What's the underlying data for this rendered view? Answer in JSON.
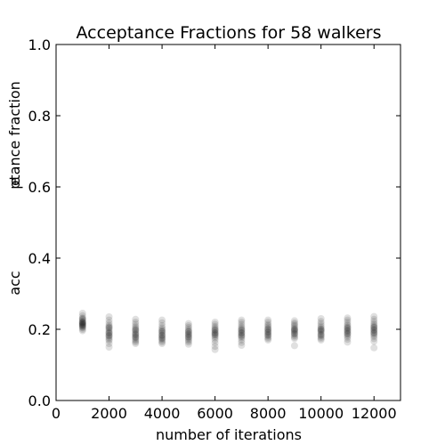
{
  "chart_data": {
    "type": "scatter",
    "title": "Acceptance Fractions for 58 walkers",
    "xlabel": "number of iterations",
    "ylabel_overlap": "ptance fraction",
    "ylabel_under": "e",
    "ylabel_start": "acc",
    "xlim": [
      0,
      13000
    ],
    "ylim": [
      0.0,
      1.0
    ],
    "x_ticks": [
      0,
      2000,
      4000,
      6000,
      8000,
      10000,
      12000
    ],
    "x_tick_labels": [
      "0",
      "2000",
      "4000",
      "6000",
      "8000",
      "10000",
      "12000"
    ],
    "y_ticks": [
      0.0,
      0.2,
      0.4,
      0.6,
      0.8,
      1.0
    ],
    "y_tick_labels": [
      "0.0",
      "0.2",
      "0.4",
      "0.6",
      "0.8",
      "1.0"
    ],
    "grid": false,
    "legend": "none",
    "marker_color": "#000000",
    "marker_alpha": 0.12,
    "series": [
      {
        "x": 1000,
        "values": [
          0.245,
          0.238,
          0.232,
          0.228,
          0.225,
          0.222,
          0.22,
          0.218,
          0.216,
          0.214,
          0.212,
          0.21,
          0.208,
          0.206,
          0.204,
          0.2,
          0.196,
          0.23,
          0.219,
          0.213
        ]
      },
      {
        "x": 2000,
        "values": [
          0.235,
          0.226,
          0.218,
          0.212,
          0.208,
          0.204,
          0.2,
          0.196,
          0.192,
          0.188,
          0.184,
          0.18,
          0.176,
          0.172,
          0.168,
          0.16,
          0.15,
          0.205,
          0.19,
          0.182
        ]
      },
      {
        "x": 3000,
        "values": [
          0.228,
          0.22,
          0.214,
          0.208,
          0.204,
          0.2,
          0.196,
          0.192,
          0.188,
          0.184,
          0.18,
          0.176,
          0.172,
          0.168,
          0.164,
          0.16,
          0.198,
          0.186,
          0.178
        ]
      },
      {
        "x": 4000,
        "values": [
          0.226,
          0.218,
          0.21,
          0.204,
          0.2,
          0.196,
          0.192,
          0.188,
          0.184,
          0.18,
          0.176,
          0.172,
          0.168,
          0.164,
          0.16,
          0.194,
          0.183,
          0.175
        ]
      },
      {
        "x": 5000,
        "values": [
          0.216,
          0.21,
          0.205,
          0.2,
          0.196,
          0.192,
          0.188,
          0.184,
          0.18,
          0.176,
          0.172,
          0.168,
          0.164,
          0.158,
          0.194,
          0.186,
          0.178
        ]
      },
      {
        "x": 6000,
        "values": [
          0.22,
          0.214,
          0.208,
          0.204,
          0.2,
          0.196,
          0.192,
          0.188,
          0.184,
          0.18,
          0.176,
          0.17,
          0.162,
          0.152,
          0.143,
          0.198,
          0.19,
          0.185
        ]
      },
      {
        "x": 7000,
        "values": [
          0.226,
          0.22,
          0.214,
          0.208,
          0.204,
          0.2,
          0.196,
          0.192,
          0.188,
          0.184,
          0.18,
          0.176,
          0.17,
          0.163,
          0.155,
          0.198,
          0.19,
          0.182
        ]
      },
      {
        "x": 8000,
        "values": [
          0.226,
          0.22,
          0.214,
          0.21,
          0.206,
          0.202,
          0.198,
          0.194,
          0.19,
          0.186,
          0.182,
          0.178,
          0.174,
          0.17,
          0.2,
          0.192,
          0.184
        ]
      },
      {
        "x": 9000,
        "values": [
          0.224,
          0.218,
          0.214,
          0.21,
          0.206,
          0.202,
          0.198,
          0.194,
          0.19,
          0.186,
          0.182,
          0.178,
          0.174,
          0.154,
          0.2,
          0.196,
          0.188
        ]
      },
      {
        "x": 10000,
        "values": [
          0.23,
          0.222,
          0.216,
          0.21,
          0.206,
          0.202,
          0.198,
          0.194,
          0.19,
          0.186,
          0.182,
          0.178,
          0.174,
          0.17,
          0.2,
          0.196,
          0.184
        ]
      },
      {
        "x": 11000,
        "values": [
          0.232,
          0.226,
          0.22,
          0.214,
          0.21,
          0.206,
          0.202,
          0.198,
          0.194,
          0.19,
          0.186,
          0.182,
          0.178,
          0.172,
          0.164,
          0.204,
          0.196,
          0.188
        ]
      },
      {
        "x": 12000,
        "values": [
          0.236,
          0.228,
          0.222,
          0.216,
          0.212,
          0.208,
          0.204,
          0.2,
          0.196,
          0.192,
          0.188,
          0.184,
          0.18,
          0.174,
          0.166,
          0.148,
          0.206,
          0.198,
          0.19
        ]
      }
    ]
  }
}
